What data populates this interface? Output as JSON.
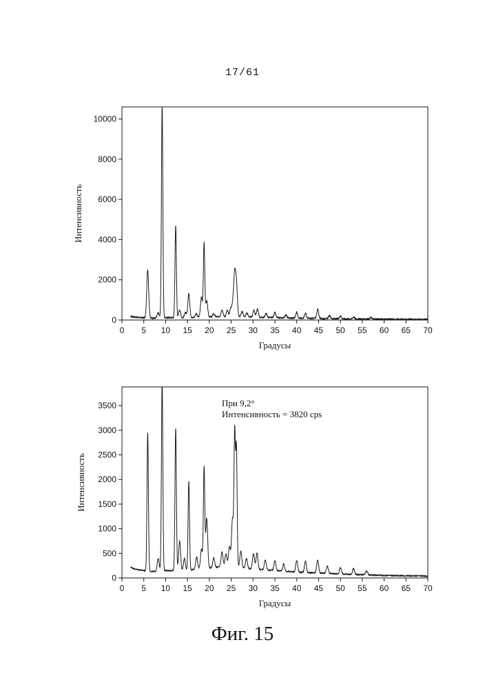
{
  "page": {
    "number": "17/61",
    "caption": "Фиг. 15"
  },
  "chart_data": [
    {
      "type": "line",
      "title": "",
      "xlabel": "Градусы",
      "ylabel": "Интенсивность",
      "xlim": [
        0,
        70
      ],
      "ylim": [
        0,
        10600
      ],
      "x_ticks": [
        0,
        5,
        10,
        15,
        20,
        25,
        30,
        35,
        40,
        45,
        50,
        55,
        60,
        65,
        70
      ],
      "y_ticks": [
        0,
        2000,
        4000,
        6000,
        8000,
        10000
      ],
      "baseline": [
        [
          2,
          180
        ],
        [
          4,
          120
        ],
        [
          7,
          90
        ],
        [
          10,
          120
        ],
        [
          14,
          110
        ],
        [
          20,
          150
        ],
        [
          25,
          180
        ],
        [
          30,
          140
        ],
        [
          40,
          90
        ],
        [
          50,
          60
        ],
        [
          60,
          40
        ],
        [
          70,
          30
        ]
      ],
      "peaks": [
        {
          "x": 5.9,
          "y": 2400
        },
        {
          "x": 8.3,
          "y": 250
        },
        {
          "x": 9.2,
          "y": 10600
        },
        {
          "x": 12.3,
          "y": 4600
        },
        {
          "x": 13.2,
          "y": 400
        },
        {
          "x": 14.5,
          "y": 250
        },
        {
          "x": 15.3,
          "y": 1200
        },
        {
          "x": 17.0,
          "y": 200
        },
        {
          "x": 18.2,
          "y": 1000
        },
        {
          "x": 18.8,
          "y": 3700
        },
        {
          "x": 19.4,
          "y": 800
        },
        {
          "x": 21.0,
          "y": 150
        },
        {
          "x": 22.9,
          "y": 350
        },
        {
          "x": 24.1,
          "y": 300
        },
        {
          "x": 24.9,
          "y": 400
        },
        {
          "x": 25.4,
          "y": 600
        },
        {
          "x": 25.8,
          "y": 1950
        },
        {
          "x": 26.2,
          "y": 1550
        },
        {
          "x": 27.5,
          "y": 250
        },
        {
          "x": 28.6,
          "y": 200
        },
        {
          "x": 30.2,
          "y": 350
        },
        {
          "x": 31.0,
          "y": 400
        },
        {
          "x": 33.0,
          "y": 200
        },
        {
          "x": 35.0,
          "y": 250
        },
        {
          "x": 37.5,
          "y": 150
        },
        {
          "x": 40.0,
          "y": 300
        },
        {
          "x": 42.0,
          "y": 250
        },
        {
          "x": 44.8,
          "y": 450
        },
        {
          "x": 47.5,
          "y": 150
        },
        {
          "x": 50.0,
          "y": 150
        },
        {
          "x": 53.0,
          "y": 100
        },
        {
          "x": 57.0,
          "y": 80
        }
      ],
      "line_color": "#1a1a1a"
    },
    {
      "type": "line",
      "title": "",
      "xlabel": "Градусы",
      "ylabel": "Интенсивность",
      "xlim": [
        0,
        70
      ],
      "ylim": [
        0,
        3880
      ],
      "x_ticks": [
        0,
        5,
        10,
        15,
        20,
        25,
        30,
        35,
        40,
        45,
        50,
        55,
        60,
        65,
        70
      ],
      "y_ticks": [
        0,
        500,
        1000,
        1500,
        2000,
        2500,
        3000,
        3500
      ],
      "annotations": [
        "При 9,2°",
        "Интенсивность = 3820 cps"
      ],
      "baseline": [
        [
          2,
          220
        ],
        [
          3,
          180
        ],
        [
          5,
          150
        ],
        [
          7,
          130
        ],
        [
          10,
          150
        ],
        [
          14,
          150
        ],
        [
          20,
          200
        ],
        [
          25,
          250
        ],
        [
          28,
          200
        ],
        [
          30,
          180
        ],
        [
          40,
          120
        ],
        [
          50,
          80
        ],
        [
          60,
          50
        ],
        [
          70,
          40
        ]
      ],
      "peaks": [
        {
          "x": 5.9,
          "y": 2820
        },
        {
          "x": 8.3,
          "y": 250
        },
        {
          "x": 9.2,
          "y": 3880
        },
        {
          "x": 12.3,
          "y": 2900
        },
        {
          "x": 13.2,
          "y": 600
        },
        {
          "x": 14.3,
          "y": 250
        },
        {
          "x": 15.3,
          "y": 1800
        },
        {
          "x": 17.1,
          "y": 250
        },
        {
          "x": 18.2,
          "y": 400
        },
        {
          "x": 18.8,
          "y": 2050
        },
        {
          "x": 19.4,
          "y": 1030
        },
        {
          "x": 21.0,
          "y": 200
        },
        {
          "x": 22.9,
          "y": 300
        },
        {
          "x": 23.8,
          "y": 250
        },
        {
          "x": 24.6,
          "y": 400
        },
        {
          "x": 25.3,
          "y": 950
        },
        {
          "x": 25.8,
          "y": 2700
        },
        {
          "x": 26.2,
          "y": 2420
        },
        {
          "x": 27.2,
          "y": 330
        },
        {
          "x": 28.5,
          "y": 200
        },
        {
          "x": 30.1,
          "y": 320
        },
        {
          "x": 30.9,
          "y": 330
        },
        {
          "x": 32.8,
          "y": 200
        },
        {
          "x": 35.0,
          "y": 200
        },
        {
          "x": 37.0,
          "y": 150
        },
        {
          "x": 40.0,
          "y": 230
        },
        {
          "x": 42.0,
          "y": 230
        },
        {
          "x": 44.8,
          "y": 260
        },
        {
          "x": 47.0,
          "y": 150
        },
        {
          "x": 50.0,
          "y": 130
        },
        {
          "x": 53.0,
          "y": 120
        },
        {
          "x": 56.0,
          "y": 80
        }
      ],
      "line_color": "#1a1a1a"
    }
  ]
}
